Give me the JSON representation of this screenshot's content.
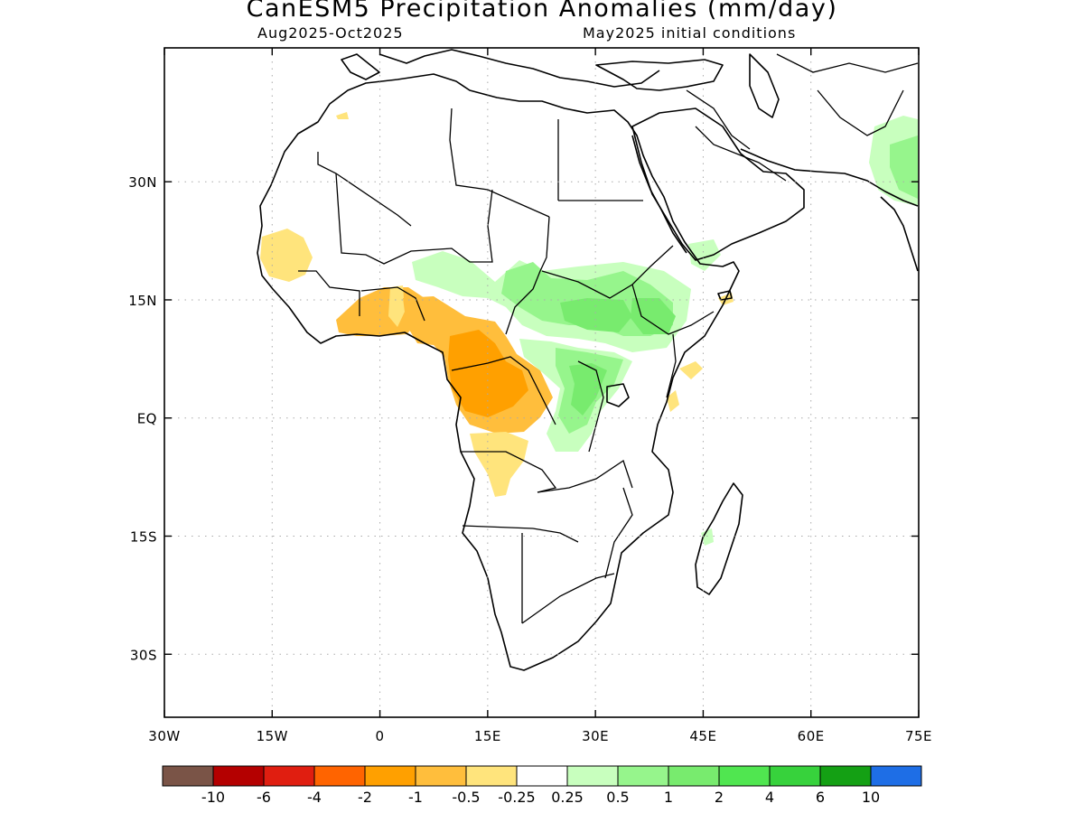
{
  "title": "CanESM5 Precipitation Anomalies (mm/day)",
  "subtitle_left": "Aug2025-Oct2025",
  "subtitle_right": "May2025 initial conditions",
  "map": {
    "lon_range": [
      -30,
      75
    ],
    "lat_range": [
      -38,
      47
    ],
    "lon_ticks": [
      "30W",
      "15W",
      "0",
      "15E",
      "30E",
      "45E",
      "60E",
      "75E"
    ],
    "lat_ticks": [
      "30N",
      "15N",
      "EQ",
      "15S",
      "30S"
    ],
    "grid": "dotted"
  },
  "colorbar": {
    "colors": [
      "#7a5447",
      "#b40000",
      "#e01e10",
      "#ff6400",
      "#ffa000",
      "#ffbe3c",
      "#ffe47c",
      "#ffffff",
      "#c8ffbe",
      "#96f58c",
      "#78eb6e",
      "#50e650",
      "#37d23c",
      "#14a014",
      "#1e6ee6"
    ],
    "labels": [
      "-10",
      "-6",
      "-4",
      "-2",
      "-1",
      "-0.5",
      "-0.25",
      "0.25",
      "0.5",
      "1",
      "2",
      "4",
      "6",
      "10"
    ]
  },
  "anomaly_regions": [
    {
      "region": "Senegal / Gambia coast",
      "level": "-0.25 to -0.5"
    },
    {
      "region": "Ghana / Togo / Benin / Nigeria",
      "level": "-0.5 to -2"
    },
    {
      "region": "Cameroon / Gabon / Congo",
      "level": "-1 to -2"
    },
    {
      "region": "Angola",
      "level": "-0.25 to -0.5"
    },
    {
      "region": "Chad / Sudan / South Sudan / Ethiopia",
      "level": "0.25 to 1"
    },
    {
      "region": "DR Congo east / Uganda / Tanzania west",
      "level": "0.5 to 2"
    },
    {
      "region": "Yemen",
      "level": "0.25 to 0.5"
    },
    {
      "region": "Pakistan / NW India",
      "level": "0.25 to 1"
    },
    {
      "region": "Somalia / Kenya coast",
      "level": "-0.25 to -0.5"
    },
    {
      "region": "Madagascar east",
      "level": "0.25 to 0.5"
    }
  ]
}
